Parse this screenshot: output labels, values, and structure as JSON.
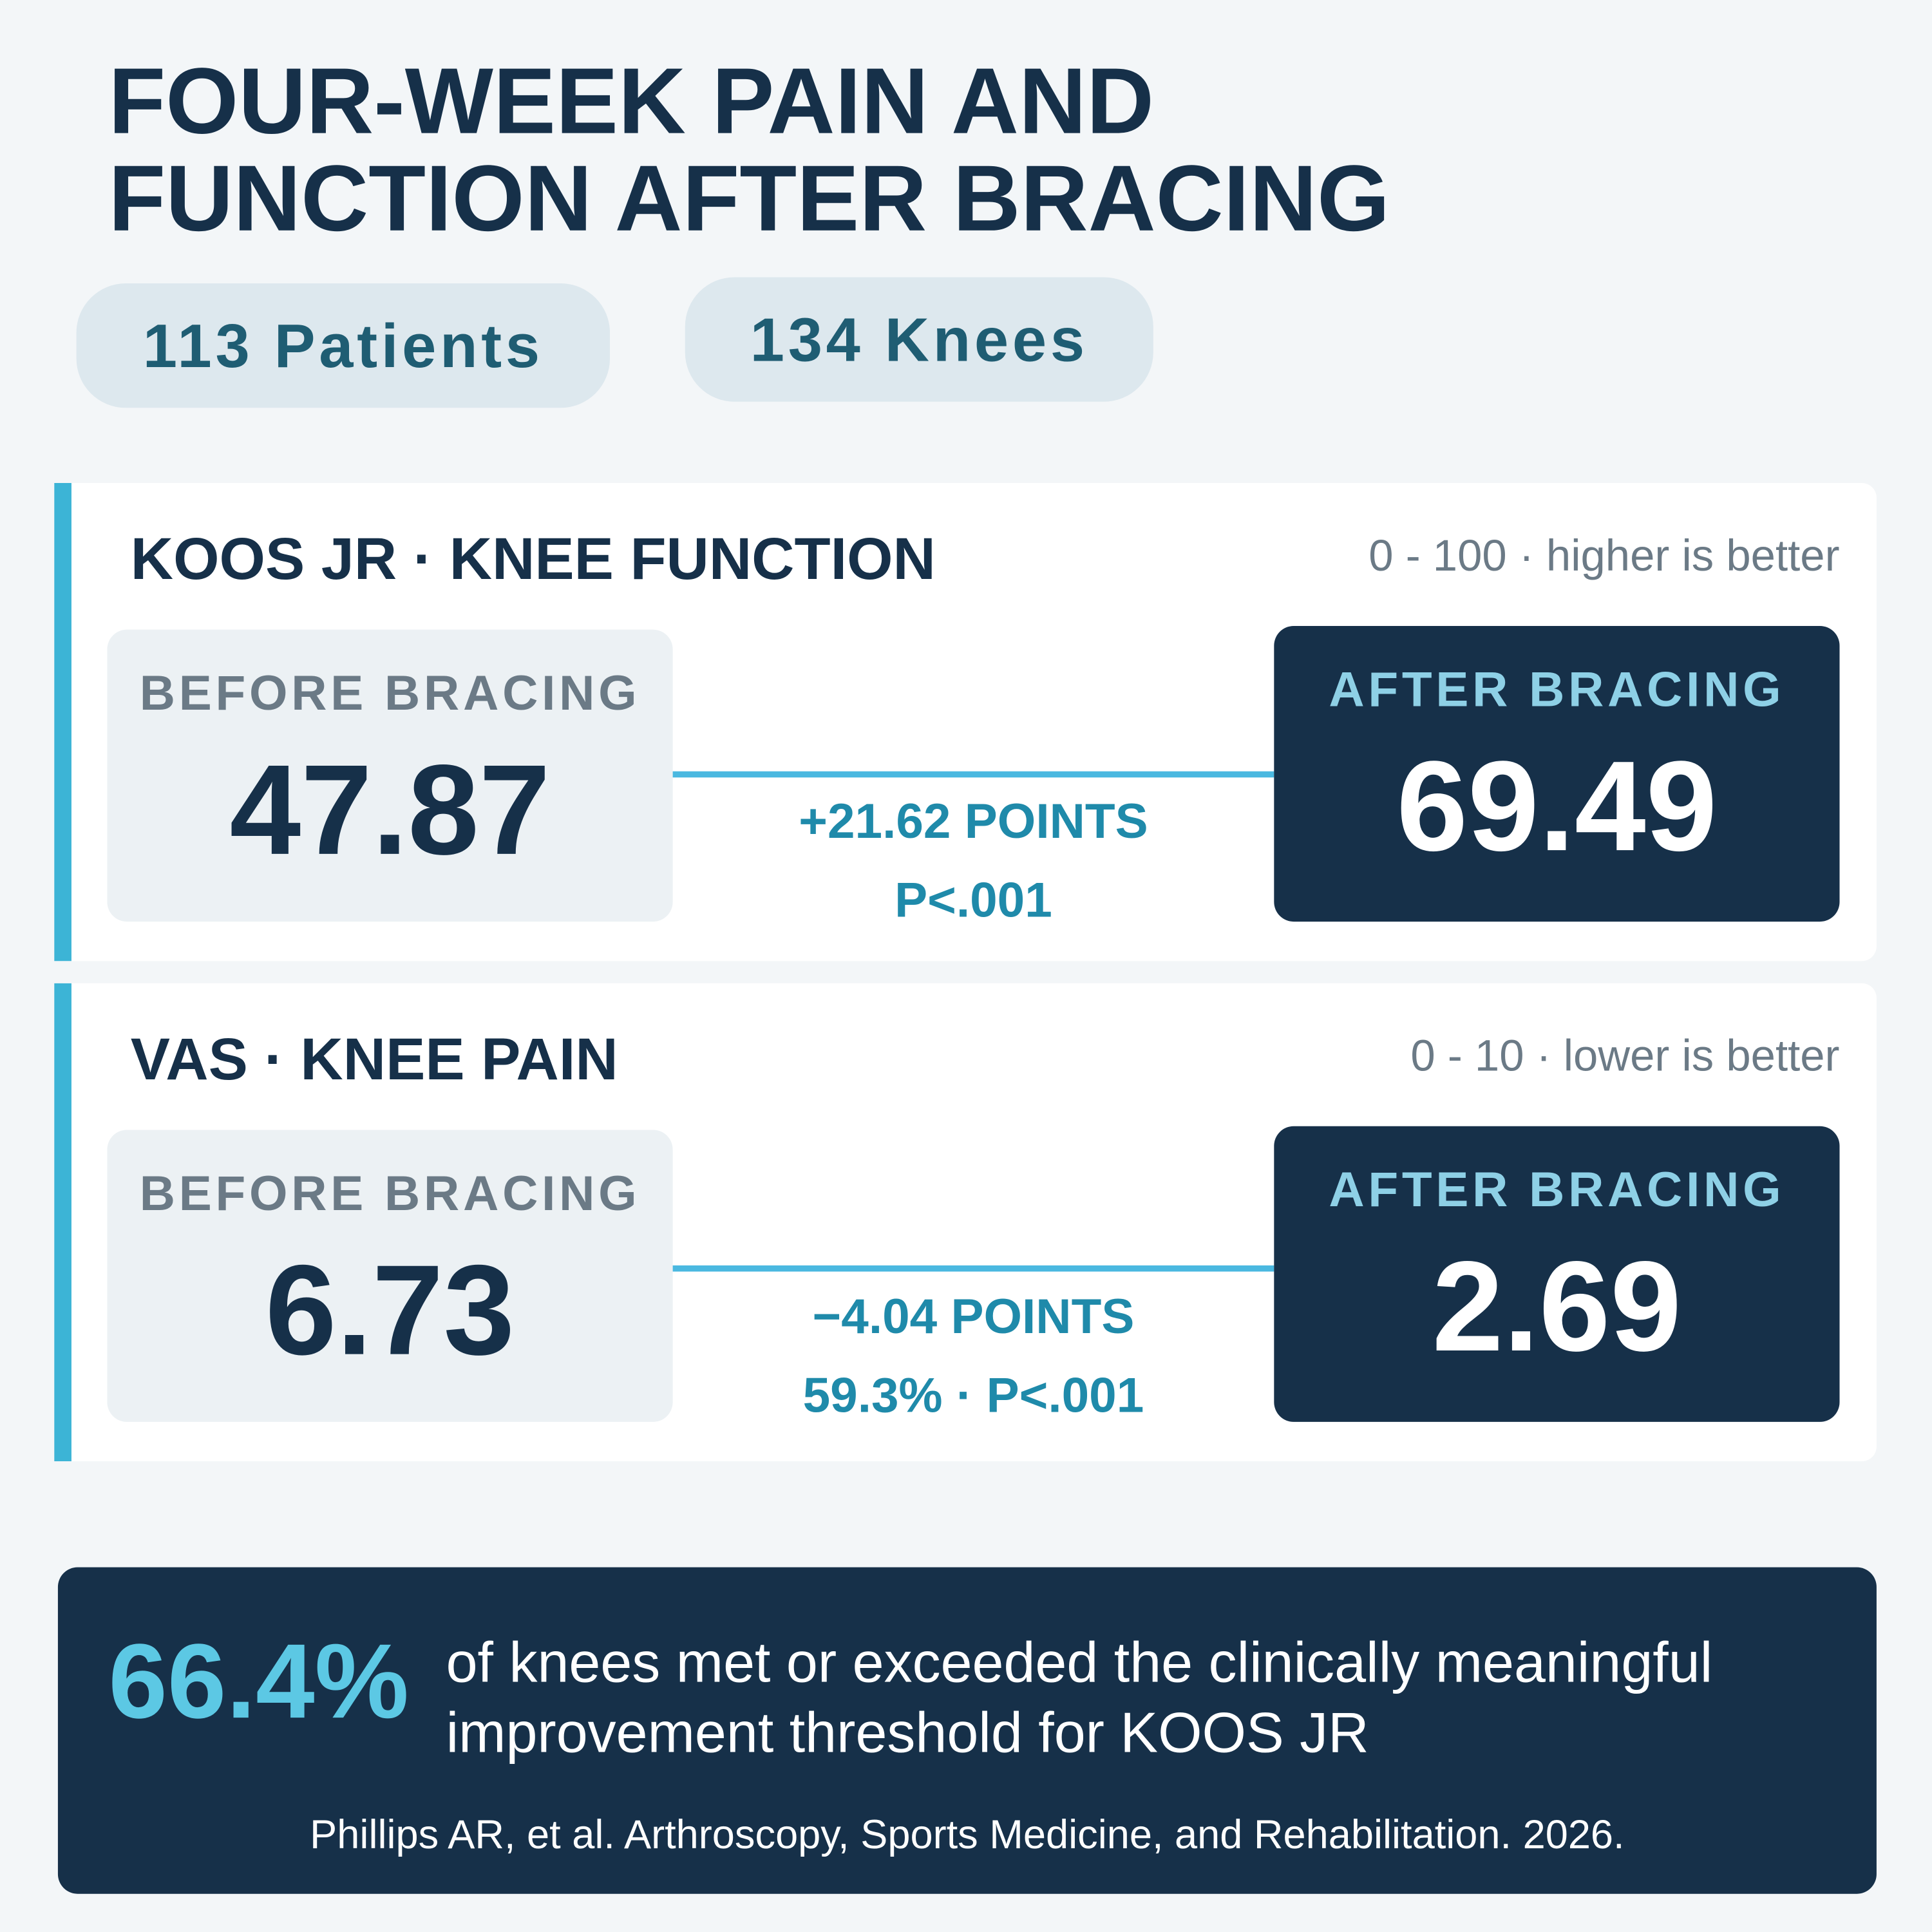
{
  "header": {
    "title": [
      "FOUR-WEEK PAIN AND",
      "FUNCTION AFTER BRACING"
    ]
  },
  "badges": [
    "113 Patients",
    "134 Knees"
  ],
  "panels": [
    {
      "title": "KOOS JR · KNEE FUNCTION",
      "scale": "0 - 100 · higher is better",
      "before_label": "BEFORE BRACING",
      "before_value": 47.87,
      "after_label": "AFTER BRACING",
      "after_value": 69.49,
      "change": [
        "+21.62 POINTS",
        "P<.001"
      ]
    },
    {
      "title": "VAS · KNEE PAIN",
      "scale": "0 - 10 · lower is better",
      "before_label": "BEFORE BRACING",
      "before_value": 6.73,
      "after_label": "AFTER BRACING",
      "after_value": 2.69,
      "change": [
        "−4.04 POINTS",
        "59.3% · P<.001"
      ]
    }
  ],
  "footer": {
    "stat": "66.4%",
    "text": [
      "of knees met or exceeded the clinically meaningful",
      "improvement threshold for KOOS JR"
    ],
    "citation": "Phillips AR, et al. Arthroscopy, Sports Medicine, and Rehabilitation. 2026."
  }
}
